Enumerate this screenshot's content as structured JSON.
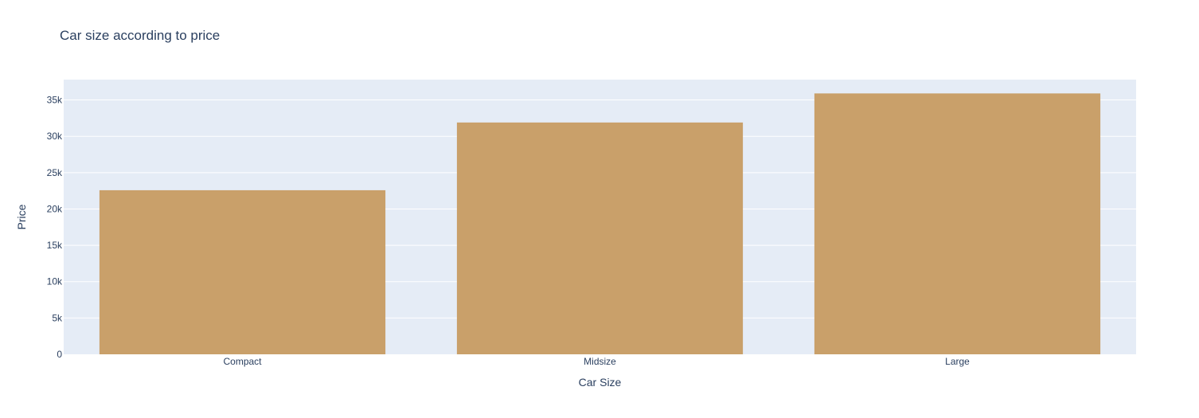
{
  "chart_data": {
    "type": "bar",
    "title": "Car size according to price",
    "xlabel": "Car Size",
    "ylabel": "Price",
    "categories": [
      "Compact",
      "Midsize",
      "Large"
    ],
    "values": [
      22580,
      31900,
      35900
    ],
    "ylim": [
      0,
      37800
    ],
    "yticks": [
      0,
      5000,
      10000,
      15000,
      20000,
      25000,
      30000,
      35000
    ],
    "ytick_labels": [
      "0",
      "5k",
      "10k",
      "15k",
      "20k",
      "25k",
      "30k",
      "35k"
    ],
    "grid": true,
    "legend": "none",
    "colors": {
      "bar": "#c9a06a",
      "plot_background": "#e5ecf6",
      "gridline": "#ffffff",
      "text": "#2a3f5f"
    }
  }
}
